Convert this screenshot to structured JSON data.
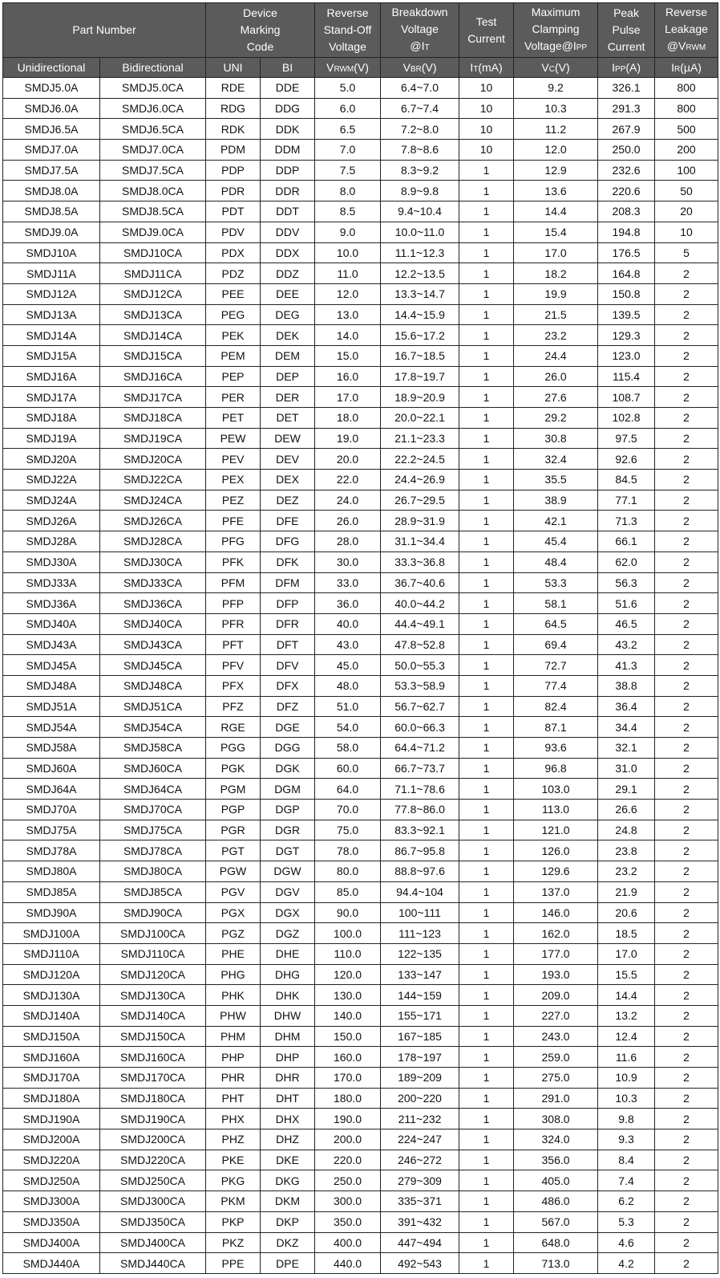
{
  "header": {
    "part_number": "Part Number",
    "marking_code": [
      "Device",
      "Marking",
      "Code"
    ],
    "standoff": [
      "Reverse",
      "Stand-Off",
      "Voltage"
    ],
    "breakdown": [
      "Breakdown",
      "Voltage",
      "@I",
      "T"
    ],
    "test_current": [
      "Test",
      "Current"
    ],
    "clamping": [
      "Maximum",
      "Clamping",
      "Voltage@I",
      "PP"
    ],
    "peak": [
      "Peak",
      "Pulse",
      "Current"
    ],
    "leakage": [
      "Reverse",
      "Leakage",
      "@V",
      "RWM"
    ],
    "sub": {
      "uni": "Unidirectional",
      "bi": "Bidirectional",
      "uni_code": "UNI",
      "bi_code": "BI",
      "vrwm": [
        "V",
        "RWM",
        "(V)"
      ],
      "vbr": [
        "V",
        "BR",
        "(V)"
      ],
      "it": [
        "I",
        "T",
        "(mA)"
      ],
      "vc": [
        "V",
        "C",
        "(V)"
      ],
      "ipp": [
        "I",
        "PP",
        "(A)"
      ],
      "ir": [
        "I",
        "R",
        "(µA)"
      ]
    }
  },
  "rows": [
    [
      "SMDJ5.0A",
      "SMDJ5.0CA",
      "RDE",
      "DDE",
      "5.0",
      "6.4~7.0",
      "10",
      "9.2",
      "326.1",
      "800"
    ],
    [
      "SMDJ6.0A",
      "SMDJ6.0CA",
      "RDG",
      "DDG",
      "6.0",
      "6.7~7.4",
      "10",
      "10.3",
      "291.3",
      "800"
    ],
    [
      "SMDJ6.5A",
      "SMDJ6.5CA",
      "RDK",
      "DDK",
      "6.5",
      "7.2~8.0",
      "10",
      "11.2",
      "267.9",
      "500"
    ],
    [
      "SMDJ7.0A",
      "SMDJ7.0CA",
      "PDM",
      "DDM",
      "7.0",
      "7.8~8.6",
      "10",
      "12.0",
      "250.0",
      "200"
    ],
    [
      "SMDJ7.5A",
      "SMDJ7.5CA",
      "PDP",
      "DDP",
      "7.5",
      "8.3~9.2",
      "1",
      "12.9",
      "232.6",
      "100"
    ],
    [
      "SMDJ8.0A",
      "SMDJ8.0CA",
      "PDR",
      "DDR",
      "8.0",
      "8.9~9.8",
      "1",
      "13.6",
      "220.6",
      "50"
    ],
    [
      "SMDJ8.5A",
      "SMDJ8.5CA",
      "PDT",
      "DDT",
      "8.5",
      "9.4~10.4",
      "1",
      "14.4",
      "208.3",
      "20"
    ],
    [
      "SMDJ9.0A",
      "SMDJ9.0CA",
      "PDV",
      "DDV",
      "9.0",
      "10.0~11.0",
      "1",
      "15.4",
      "194.8",
      "10"
    ],
    [
      "SMDJ10A",
      "SMDJ10CA",
      "PDX",
      "DDX",
      "10.0",
      "11.1~12.3",
      "1",
      "17.0",
      "176.5",
      "5"
    ],
    [
      "SMDJ11A",
      "SMDJ11CA",
      "PDZ",
      "DDZ",
      "11.0",
      "12.2~13.5",
      "1",
      "18.2",
      "164.8",
      "2"
    ],
    [
      "SMDJ12A",
      "SMDJ12CA",
      "PEE",
      "DEE",
      "12.0",
      "13.3~14.7",
      "1",
      "19.9",
      "150.8",
      "2"
    ],
    [
      "SMDJ13A",
      "SMDJ13CA",
      "PEG",
      "DEG",
      "13.0",
      "14.4~15.9",
      "1",
      "21.5",
      "139.5",
      "2"
    ],
    [
      "SMDJ14A",
      "SMDJ14CA",
      "PEK",
      "DEK",
      "14.0",
      "15.6~17.2",
      "1",
      "23.2",
      "129.3",
      "2"
    ],
    [
      "SMDJ15A",
      "SMDJ15CA",
      "PEM",
      "DEM",
      "15.0",
      "16.7~18.5",
      "1",
      "24.4",
      "123.0",
      "2"
    ],
    [
      "SMDJ16A",
      "SMDJ16CA",
      "PEP",
      "DEP",
      "16.0",
      "17.8~19.7",
      "1",
      "26.0",
      "115.4",
      "2"
    ],
    [
      "SMDJ17A",
      "SMDJ17CA",
      "PER",
      "DER",
      "17.0",
      "18.9~20.9",
      "1",
      "27.6",
      "108.7",
      "2"
    ],
    [
      "SMDJ18A",
      "SMDJ18CA",
      "PET",
      "DET",
      "18.0",
      "20.0~22.1",
      "1",
      "29.2",
      "102.8",
      "2"
    ],
    [
      "SMDJ19A",
      "SMDJ19CA",
      "PEW",
      "DEW",
      "19.0",
      "21.1~23.3",
      "1",
      "30.8",
      "97.5",
      "2"
    ],
    [
      "SMDJ20A",
      "SMDJ20CA",
      "PEV",
      "DEV",
      "20.0",
      "22.2~24.5",
      "1",
      "32.4",
      "92.6",
      "2"
    ],
    [
      "SMDJ22A",
      "SMDJ22CA",
      "PEX",
      "DEX",
      "22.0",
      "24.4~26.9",
      "1",
      "35.5",
      "84.5",
      "2"
    ],
    [
      "SMDJ24A",
      "SMDJ24CA",
      "PEZ",
      "DEZ",
      "24.0",
      "26.7~29.5",
      "1",
      "38.9",
      "77.1",
      "2"
    ],
    [
      "SMDJ26A",
      "SMDJ26CA",
      "PFE",
      "DFE",
      "26.0",
      "28.9~31.9",
      "1",
      "42.1",
      "71.3",
      "2"
    ],
    [
      "SMDJ28A",
      "SMDJ28CA",
      "PFG",
      "DFG",
      "28.0",
      "31.1~34.4",
      "1",
      "45.4",
      "66.1",
      "2"
    ],
    [
      "SMDJ30A",
      "SMDJ30CA",
      "PFK",
      "DFK",
      "30.0",
      "33.3~36.8",
      "1",
      "48.4",
      "62.0",
      "2"
    ],
    [
      "SMDJ33A",
      "SMDJ33CA",
      "PFM",
      "DFM",
      "33.0",
      "36.7~40.6",
      "1",
      "53.3",
      "56.3",
      "2"
    ],
    [
      "SMDJ36A",
      "SMDJ36CA",
      "PFP",
      "DFP",
      "36.0",
      "40.0~44.2",
      "1",
      "58.1",
      "51.6",
      "2"
    ],
    [
      "SMDJ40A",
      "SMDJ40CA",
      "PFR",
      "DFR",
      "40.0",
      "44.4~49.1",
      "1",
      "64.5",
      "46.5",
      "2"
    ],
    [
      "SMDJ43A",
      "SMDJ43CA",
      "PFT",
      "DFT",
      "43.0",
      "47.8~52.8",
      "1",
      "69.4",
      "43.2",
      "2"
    ],
    [
      "SMDJ45A",
      "SMDJ45CA",
      "PFV",
      "DFV",
      "45.0",
      "50.0~55.3",
      "1",
      "72.7",
      "41.3",
      "2"
    ],
    [
      "SMDJ48A",
      "SMDJ48CA",
      "PFX",
      "DFX",
      "48.0",
      "53.3~58.9",
      "1",
      "77.4",
      "38.8",
      "2"
    ],
    [
      "SMDJ51A",
      "SMDJ51CA",
      "PFZ",
      "DFZ",
      "51.0",
      "56.7~62.7",
      "1",
      "82.4",
      "36.4",
      "2"
    ],
    [
      "SMDJ54A",
      "SMDJ54CA",
      "RGE",
      "DGE",
      "54.0",
      "60.0~66.3",
      "1",
      "87.1",
      "34.4",
      "2"
    ],
    [
      "SMDJ58A",
      "SMDJ58CA",
      "PGG",
      "DGG",
      "58.0",
      "64.4~71.2",
      "1",
      "93.6",
      "32.1",
      "2"
    ],
    [
      "SMDJ60A",
      "SMDJ60CA",
      "PGK",
      "DGK",
      "60.0",
      "66.7~73.7",
      "1",
      "96.8",
      "31.0",
      "2"
    ],
    [
      "SMDJ64A",
      "SMDJ64CA",
      "PGM",
      "DGM",
      "64.0",
      "71.1~78.6",
      "1",
      "103.0",
      "29.1",
      "2"
    ],
    [
      "SMDJ70A",
      "SMDJ70CA",
      "PGP",
      "DGP",
      "70.0",
      "77.8~86.0",
      "1",
      "113.0",
      "26.6",
      "2"
    ],
    [
      "SMDJ75A",
      "SMDJ75CA",
      "PGR",
      "DGR",
      "75.0",
      "83.3~92.1",
      "1",
      "121.0",
      "24.8",
      "2"
    ],
    [
      "SMDJ78A",
      "SMDJ78CA",
      "PGT",
      "DGT",
      "78.0",
      "86.7~95.8",
      "1",
      "126.0",
      "23.8",
      "2"
    ],
    [
      "SMDJ80A",
      "SMDJ80CA",
      "PGW",
      "DGW",
      "80.0",
      "88.8~97.6",
      "1",
      "129.6",
      "23.2",
      "2"
    ],
    [
      "SMDJ85A",
      "SMDJ85CA",
      "PGV",
      "DGV",
      "85.0",
      "94.4~104",
      "1",
      "137.0",
      "21.9",
      "2"
    ],
    [
      "SMDJ90A",
      "SMDJ90CA",
      "PGX",
      "DGX",
      "90.0",
      "100~111",
      "1",
      "146.0",
      "20.6",
      "2"
    ],
    [
      "SMDJ100A",
      "SMDJ100CA",
      "PGZ",
      "DGZ",
      "100.0",
      "111~123",
      "1",
      "162.0",
      "18.5",
      "2"
    ],
    [
      "SMDJ110A",
      "SMDJ110CA",
      "PHE",
      "DHE",
      "110.0",
      "122~135",
      "1",
      "177.0",
      "17.0",
      "2"
    ],
    [
      "SMDJ120A",
      "SMDJ120CA",
      "PHG",
      "DHG",
      "120.0",
      "133~147",
      "1",
      "193.0",
      "15.5",
      "2"
    ],
    [
      "SMDJ130A",
      "SMDJ130CA",
      "PHK",
      "DHK",
      "130.0",
      "144~159",
      "1",
      "209.0",
      "14.4",
      "2"
    ],
    [
      "SMDJ140A",
      "SMDJ140CA",
      "PHW",
      "DHW",
      "140.0",
      "155~171",
      "1",
      "227.0",
      "13.2",
      "2"
    ],
    [
      "SMDJ150A",
      "SMDJ150CA",
      "PHM",
      "DHM",
      "150.0",
      "167~185",
      "1",
      "243.0",
      "12.4",
      "2"
    ],
    [
      "SMDJ160A",
      "SMDJ160CA",
      "PHP",
      "DHP",
      "160.0",
      "178~197",
      "1",
      "259.0",
      "11.6",
      "2"
    ],
    [
      "SMDJ170A",
      "SMDJ170CA",
      "PHR",
      "DHR",
      "170.0",
      "189~209",
      "1",
      "275.0",
      "10.9",
      "2"
    ],
    [
      "SMDJ180A",
      "SMDJ180CA",
      "PHT",
      "DHT",
      "180.0",
      "200~220",
      "1",
      "291.0",
      "10.3",
      "2"
    ],
    [
      "SMDJ190A",
      "SMDJ190CA",
      "PHX",
      "DHX",
      "190.0",
      "211~232",
      "1",
      "308.0",
      "9.8",
      "2"
    ],
    [
      "SMDJ200A",
      "SMDJ200CA",
      "PHZ",
      "DHZ",
      "200.0",
      "224~247",
      "1",
      "324.0",
      "9.3",
      "2"
    ],
    [
      "SMDJ220A",
      "SMDJ220CA",
      "PKE",
      "DKE",
      "220.0",
      "246~272",
      "1",
      "356.0",
      "8.4",
      "2"
    ],
    [
      "SMDJ250A",
      "SMDJ250CA",
      "PKG",
      "DKG",
      "250.0",
      "279~309",
      "1",
      "405.0",
      "7.4",
      "2"
    ],
    [
      "SMDJ300A",
      "SMDJ300CA",
      "PKM",
      "DKM",
      "300.0",
      "335~371",
      "1",
      "486.0",
      "6.2",
      "2"
    ],
    [
      "SMDJ350A",
      "SMDJ350CA",
      "PKP",
      "DKP",
      "350.0",
      "391~432",
      "1",
      "567.0",
      "5.3",
      "2"
    ],
    [
      "SMDJ400A",
      "SMDJ400CA",
      "PKZ",
      "DKZ",
      "400.0",
      "447~494",
      "1",
      "648.0",
      "4.6",
      "2"
    ],
    [
      "SMDJ440A",
      "SMDJ440CA",
      "PPE",
      "DPE",
      "440.0",
      "492~543",
      "1",
      "713.0",
      "4.2",
      "2"
    ]
  ]
}
